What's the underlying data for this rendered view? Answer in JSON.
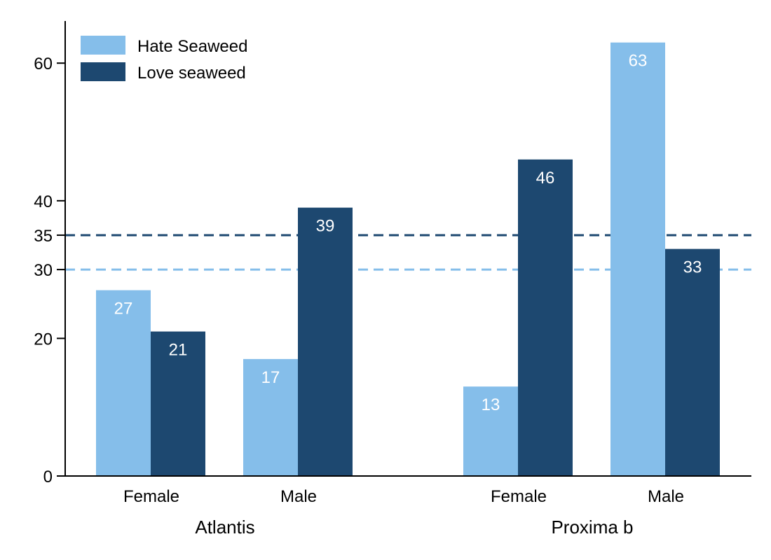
{
  "chart_data": {
    "type": "bar",
    "title": "",
    "xlabel": "",
    "ylabel": "",
    "ylim": [
      0,
      67
    ],
    "yticks": [
      0,
      20,
      30,
      35,
      40,
      60
    ],
    "grid": false,
    "legend_position": "top-left",
    "groups": [
      {
        "name": "Atlantis",
        "categories": [
          "Female",
          "Male"
        ]
      },
      {
        "name": "Proxima b",
        "categories": [
          "Female",
          "Male"
        ]
      }
    ],
    "series": [
      {
        "name": "Hate Seaweed",
        "color": "#85BEEA",
        "values": [
          27,
          17,
          13,
          63
        ]
      },
      {
        "name": "Love seaweed",
        "color": "#1D4870",
        "values": [
          21,
          39,
          46,
          33
        ]
      }
    ],
    "reference_lines": [
      {
        "series": "Love seaweed",
        "value": 35,
        "color": "#1D4870",
        "style": "dashed"
      },
      {
        "series": "Hate Seaweed",
        "value": 30,
        "color": "#85BEEA",
        "style": "dashed"
      }
    ]
  }
}
